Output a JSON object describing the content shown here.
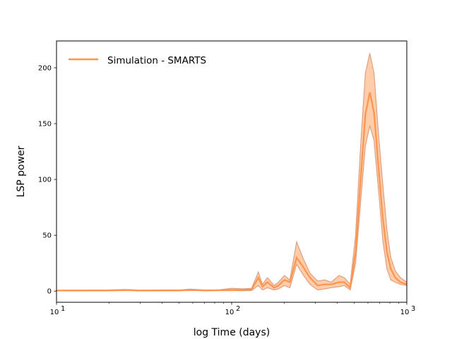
{
  "chart_data": {
    "type": "line",
    "xscale": "log",
    "xlabel": "log Time (days)",
    "ylabel": "LSP power",
    "xlim": [
      10,
      1000
    ],
    "ylim": [
      -10,
      224
    ],
    "x_ticks": [
      {
        "value": 10,
        "base": "10",
        "exp": "1"
      },
      {
        "value": 100,
        "base": "10",
        "exp": "2"
      },
      {
        "value": 1000,
        "base": "10",
        "exp": "3"
      }
    ],
    "y_ticks": [
      0,
      50,
      100,
      150,
      200
    ],
    "legend": {
      "position": "upper-left",
      "frame": false
    },
    "colors": {
      "line": "#ff944d",
      "band_fill": "#ffc8a0",
      "band_edge": "#e0a082"
    },
    "series": [
      {
        "name": "Simulation - SMARTS",
        "x": [
          10,
          20,
          25,
          30,
          40,
          50,
          58,
          70,
          85,
          100,
          115,
          130,
          142,
          150,
          160,
          175,
          185,
          200,
          215,
          235,
          255,
          280,
          310,
          340,
          370,
          410,
          440,
          475,
          510,
          545,
          580,
          615,
          650,
          690,
          730,
          770,
          810,
          860,
          920,
          1000
        ],
        "values": [
          0.5,
          0.6,
          1.0,
          0.5,
          0.6,
          0.6,
          1.2,
          0.6,
          0.8,
          1.0,
          1.0,
          1.5,
          12,
          4,
          8,
          3,
          5,
          10,
          8,
          30,
          22,
          12,
          5,
          6,
          6,
          8,
          8,
          3,
          35,
          100,
          158,
          178,
          160,
          110,
          65,
          35,
          20,
          12,
          8,
          6
        ],
        "upper": [
          0.8,
          1.0,
          1.5,
          0.8,
          1.0,
          1.0,
          1.8,
          1.0,
          1.2,
          2.5,
          2.0,
          2.5,
          17,
          6,
          12,
          5,
          8,
          14,
          10,
          44,
          30,
          16,
          9,
          10,
          8,
          14,
          12,
          6,
          50,
          130,
          195,
          213,
          195,
          140,
          95,
          55,
          30,
          18,
          12,
          8
        ],
        "lower": [
          0.2,
          0.3,
          0.5,
          0.2,
          0.3,
          0.3,
          0.6,
          0.3,
          0.4,
          0.5,
          0.3,
          0.5,
          5,
          1,
          3,
          1,
          2,
          5,
          3,
          24,
          15,
          6,
          1,
          2,
          3,
          4,
          5,
          1,
          25,
          80,
          130,
          148,
          135,
          90,
          45,
          20,
          10,
          8,
          6,
          5
        ]
      }
    ]
  }
}
